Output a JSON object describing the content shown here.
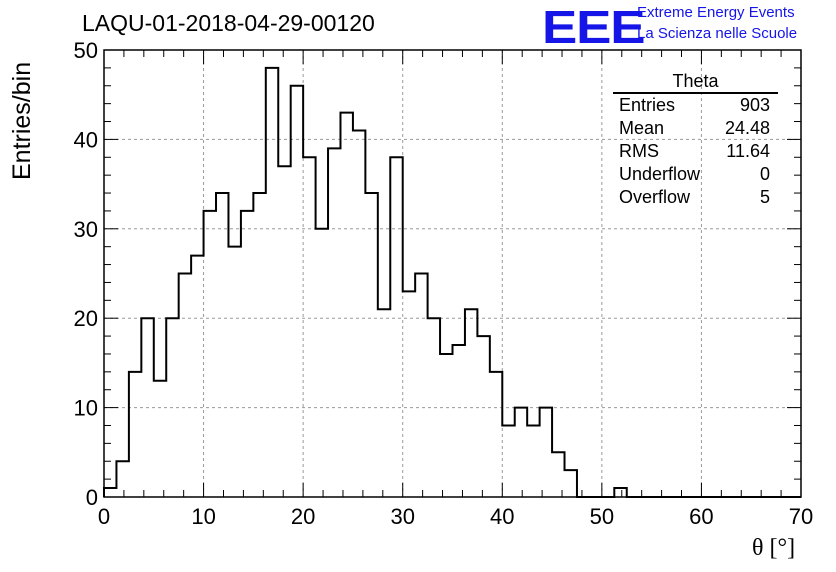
{
  "title": "LAQU-01-2018-04-29-00120",
  "logo": {
    "mark": "EEE",
    "line1": "Extreme Energy Events",
    "line2": "La Scienza nelle Scuole",
    "color": "#1515e8"
  },
  "stats": {
    "title": "Theta",
    "rows": [
      {
        "label": "Entries",
        "value": "903"
      },
      {
        "label": "Mean",
        "value": "24.48"
      },
      {
        "label": "RMS",
        "value": "11.64"
      },
      {
        "label": "Underflow",
        "value": "0"
      },
      {
        "label": "Overflow",
        "value": "5"
      }
    ]
  },
  "chart_data": {
    "type": "histogram",
    "title": "LAQU-01-2018-04-29-00120",
    "xlabel": "θ [°]",
    "ylabel": "Entries/bin",
    "xlim": [
      0,
      70
    ],
    "ylim": [
      0,
      50
    ],
    "bin_width": 1.25,
    "xticks": [
      0,
      10,
      20,
      30,
      40,
      50,
      60,
      70
    ],
    "yticks": [
      0,
      10,
      20,
      30,
      40,
      50
    ],
    "grid": true,
    "values": [
      1,
      4,
      14,
      20,
      13,
      20,
      25,
      27,
      32,
      34,
      28,
      32,
      34,
      48,
      37,
      46,
      38,
      30,
      39,
      43,
      41,
      34,
      21,
      38,
      23,
      25,
      20,
      16,
      17,
      21,
      18,
      14,
      8,
      10,
      8,
      10,
      5,
      3,
      0,
      0,
      0,
      1,
      0,
      0,
      0,
      0,
      0,
      0,
      0,
      0,
      0,
      0,
      0,
      0,
      0,
      0
    ]
  }
}
